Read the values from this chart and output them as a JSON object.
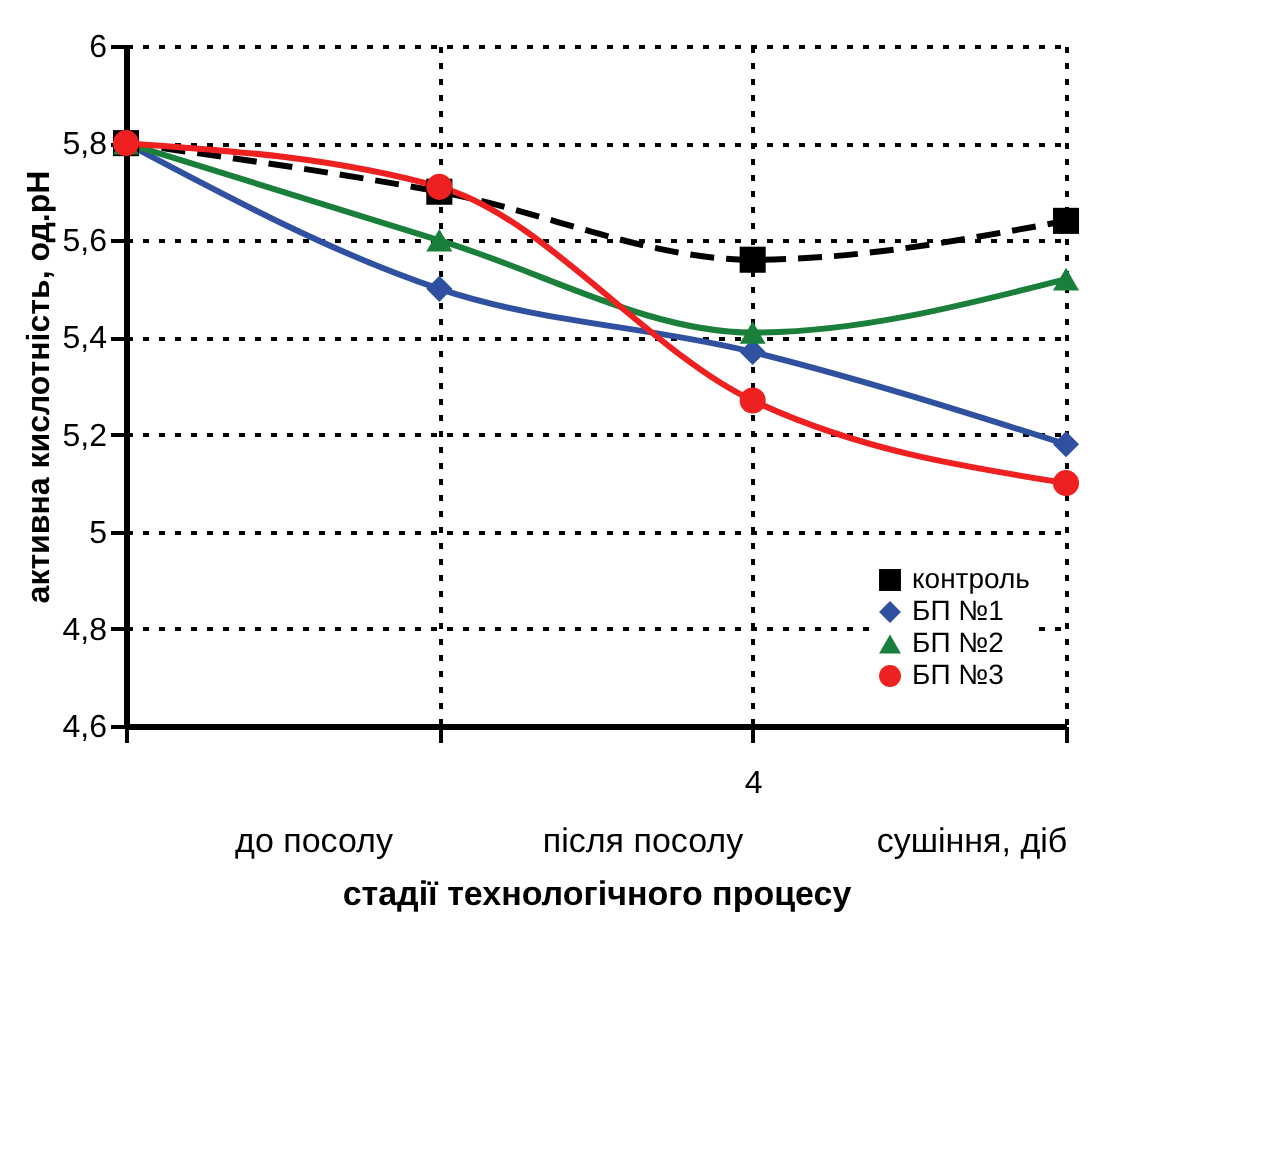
{
  "chart_data": {
    "type": "line",
    "xlabel": "стадії технологічного процесу",
    "ylabel": "активна кислотність, од.рН",
    "categories": [
      null,
      null,
      "4",
      null
    ],
    "series": [
      {
        "name": "контроль",
        "color": "#000000",
        "values": [
          5.8,
          5.7,
          5.56,
          5.64
        ],
        "marker": "square",
        "line_style": "dashed"
      },
      {
        "name": "БП №1",
        "color": "#3050a0",
        "values": [
          5.8,
          5.5,
          5.37,
          5.18
        ],
        "marker": "diamond",
        "line_style": "solid"
      },
      {
        "name": "БП №2",
        "color": "#1a7f3a",
        "values": [
          5.8,
          5.6,
          5.41,
          5.52
        ],
        "marker": "triangle",
        "line_style": "solid"
      },
      {
        "name": "БП №3",
        "color": "#ee2020",
        "values": [
          5.8,
          5.71,
          5.27,
          5.1
        ],
        "marker": "circle",
        "line_style": "solid"
      }
    ],
    "ylim": [
      4.6,
      6
    ],
    "yticks": [
      {
        "value": 4.6,
        "label": "4,6"
      },
      {
        "value": 4.8,
        "label": "4,8"
      },
      5,
      {
        "value": 5.2,
        "label": "5,2"
      },
      {
        "value": 5.4,
        "label": "5,4"
      },
      {
        "value": 5.6,
        "label": "5,6"
      },
      {
        "value": 5.8,
        "label": "5,8"
      },
      6
    ],
    "annotations": [
      "до посолу",
      "після посолу",
      "сушіння, діб"
    ],
    "grid": true,
    "legend": "bottom right"
  }
}
